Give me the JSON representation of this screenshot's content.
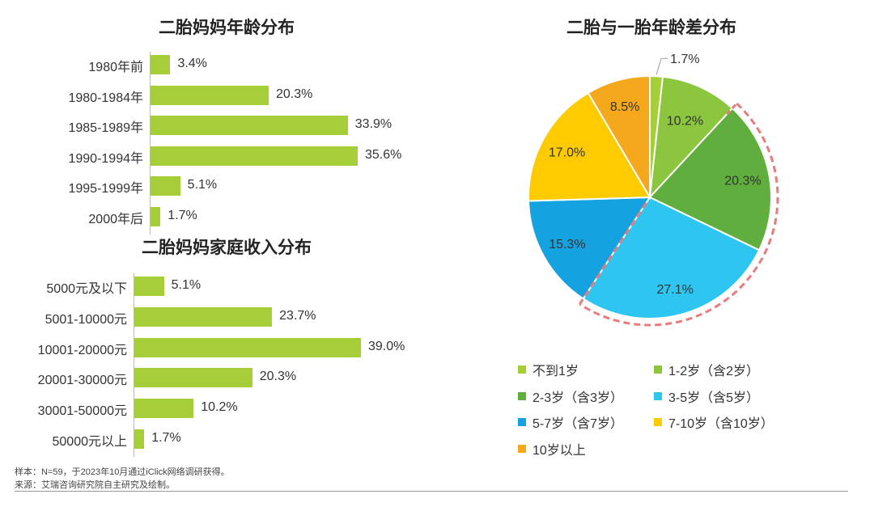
{
  "chart_data": [
    {
      "type": "bar",
      "orientation": "horizontal",
      "title": "二胎妈妈年龄分布",
      "categories": [
        "1980年前",
        "1980-1984年",
        "1985-1989年",
        "1990-1994年",
        "1995-1999年",
        "2000年后"
      ],
      "values": [
        3.4,
        20.3,
        33.9,
        35.6,
        5.1,
        1.7
      ],
      "value_labels": [
        "3.4%",
        "20.3%",
        "33.9%",
        "35.6%",
        "5.1%",
        "1.7%"
      ],
      "color": "#a6ce39"
    },
    {
      "type": "bar",
      "orientation": "horizontal",
      "title": "二胎妈妈家庭收入分布",
      "categories": [
        "5000元及以下",
        "5001-10000元",
        "10001-20000元",
        "20001-30000元",
        "30001-50000元",
        "50000元以上"
      ],
      "values": [
        5.1,
        23.7,
        39.0,
        20.3,
        10.2,
        1.7
      ],
      "value_labels": [
        "5.1%",
        "23.7%",
        "39.0%",
        "20.3%",
        "10.2%",
        "1.7%"
      ],
      "color": "#a6ce39"
    },
    {
      "type": "pie",
      "title": "二胎与一胎年龄差分布",
      "slices": [
        {
          "label": "不到1岁",
          "value": 1.7,
          "value_label": "1.7%",
          "color": "#a6ce39"
        },
        {
          "label": "1-2岁（含2岁）",
          "value": 10.2,
          "value_label": "10.2%",
          "color": "#8cc63f"
        },
        {
          "label": "2-3岁（含3岁）",
          "value": 20.3,
          "value_label": "20.3%",
          "color": "#5fae3e"
        },
        {
          "label": "3-5岁（含5岁）",
          "value": 27.1,
          "value_label": "27.1%",
          "color": "#2ec6f0"
        },
        {
          "label": "5-7岁（含7岁）",
          "value": 15.3,
          "value_label": "15.3%",
          "color": "#14a3e0"
        },
        {
          "label": "7-10岁（含10岁）",
          "value": 17.0,
          "value_label": "17.0%",
          "color": "#fecb00"
        },
        {
          "label": "10岁以上",
          "value": 8.5,
          "value_label": "8.5%",
          "color": "#f5a81c"
        }
      ],
      "highlight": "dashed arc around 2-3岁 and 3-5岁",
      "highlight_color": "#e87b7b",
      "legend_position": "bottom"
    }
  ],
  "footnotes": {
    "sample": "样本：N=59，于2023年10月通过iClick网络调研获得。",
    "source": "来源：艾瑞咨询研究院自主研究及绘制。"
  }
}
